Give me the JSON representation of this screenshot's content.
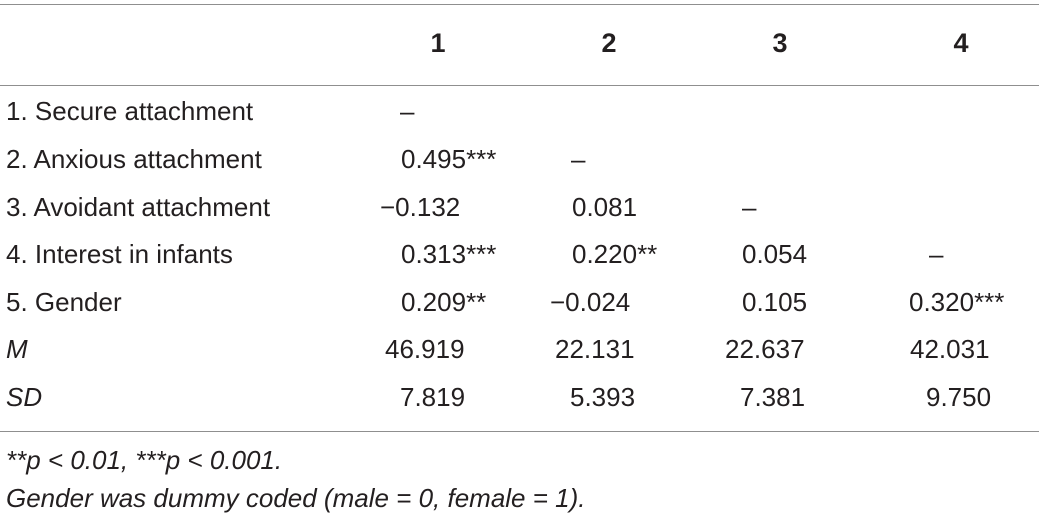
{
  "table": {
    "headers": [
      "",
      "1",
      "2",
      "3",
      "4"
    ],
    "rows": [
      {
        "label": "1. Secure attachment",
        "italic": false,
        "cells": [
          "–",
          "",
          "",
          ""
        ]
      },
      {
        "label": "2. Anxious attachment",
        "italic": false,
        "cells": [
          "0.495***",
          "–",
          "",
          ""
        ]
      },
      {
        "label": "3. Avoidant attachment",
        "italic": false,
        "cells": [
          "−0.132",
          "0.081",
          "–",
          ""
        ]
      },
      {
        "label": "4. Interest in infants",
        "italic": false,
        "cells": [
          "0.313***",
          "0.220**",
          "0.054",
          "–"
        ]
      },
      {
        "label": "5. Gender",
        "italic": false,
        "cells": [
          "0.209**",
          "−0.024",
          "0.105",
          "0.320***"
        ]
      },
      {
        "label": "M",
        "italic": true,
        "cells": [
          "46.919",
          "22.131",
          "22.637",
          "42.031"
        ]
      },
      {
        "label": "SD",
        "italic": true,
        "cells": [
          "7.819",
          "5.393",
          "7.381",
          "9.750"
        ]
      }
    ]
  },
  "notes": {
    "significance": "**p < 0.01, ***p < 0.001.",
    "gender_coding": "Gender was dummy coded (male = 0, female = 1)."
  }
}
